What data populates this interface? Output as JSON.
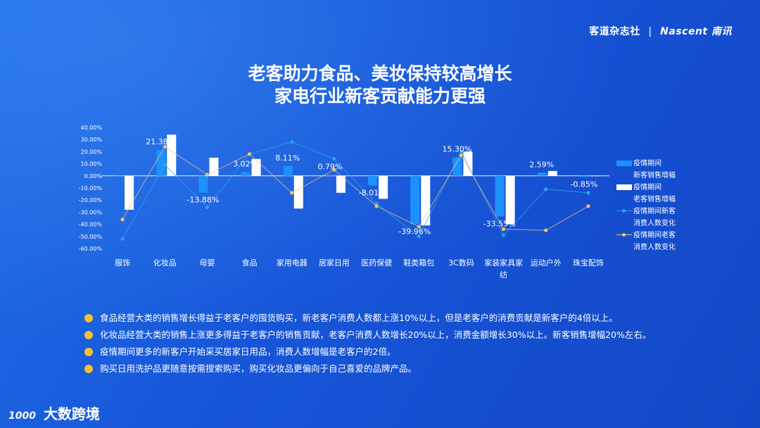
{
  "brand": {
    "left": "客道杂志社",
    "separator": "|",
    "right": "Nascent 南讯"
  },
  "title": {
    "line1": "老客助力食品、美妆保持较高增长",
    "line2": "家电行业新客贡献能力更强"
  },
  "legend": [
    {
      "lines": [
        "疫情期间",
        "新客销售增幅"
      ],
      "color": "#1e90ff",
      "kind": "bar"
    },
    {
      "lines": [
        "疫情期间",
        "老客销售增幅"
      ],
      "color": "#ffffff",
      "kind": "bar"
    },
    {
      "lines": [
        "疫情期间新客",
        "消费人数变化"
      ],
      "color": "#2aa4f4",
      "kind": "line"
    },
    {
      "lines": [
        "疫情期间老客",
        "消费人数变化"
      ],
      "color": "#f5c26b",
      "kind": "line"
    }
  ],
  "chart_data": {
    "type": "bar",
    "categories": [
      "服饰",
      "化妆品",
      "母婴",
      "食品",
      "家用电器",
      "居家日用",
      "医药保健",
      "鞋类箱包",
      "3C数码",
      "家装家具家纺",
      "运动户外",
      "珠宝配饰"
    ],
    "category_label_lines": [
      [
        "服饰"
      ],
      [
        "化妆品"
      ],
      [
        "母婴"
      ],
      [
        "食品"
      ],
      [
        "家用电器"
      ],
      [
        "居家日用"
      ],
      [
        "医药保健"
      ],
      [
        "鞋类箱包"
      ],
      [
        "3C数码"
      ],
      [
        "家装家具家",
        "纺"
      ],
      [
        "运动户外"
      ],
      [
        "珠宝配饰"
      ]
    ],
    "yticks": [
      "40.00%",
      "30.00%",
      "20.00%",
      "10.00%",
      "0.00%",
      "-10.00%",
      "-20.00%",
      "-30.00%",
      "-40.00%",
      "-50.00%",
      "-60.00%"
    ],
    "ylim": [
      -60,
      40
    ],
    "series": [
      {
        "name": "疫情期间新客销售增幅",
        "type": "bar",
        "color": "#1e90ff",
        "values": [
          0,
          21.38,
          -13.88,
          3.02,
          8.11,
          0.79,
          -8.01,
          -39.96,
          15.3,
          -33.55,
          2.59,
          -0.85
        ]
      },
      {
        "name": "疫情期间老客销售增幅",
        "type": "bar",
        "color": "#ffffff",
        "values": [
          -28,
          34,
          15,
          14,
          -27,
          -14,
          -19,
          -41,
          20,
          -40,
          4,
          0
        ]
      },
      {
        "name": "疫情期间新客消费人数变化",
        "type": "line",
        "color": "#2aa4f4",
        "values": [
          -52,
          9,
          -26,
          18,
          28,
          14,
          -23,
          -50,
          20,
          -49,
          -11,
          -14
        ]
      },
      {
        "name": "疫情期间老客消费人数变化",
        "type": "line",
        "color": "#f5c26b",
        "values": [
          -36,
          24,
          1,
          18,
          -14,
          5,
          -25,
          -42,
          17,
          -44,
          -45,
          -25
        ]
      }
    ],
    "data_labels": [
      "",
      "21.38%",
      "-13.88%",
      "3.02%",
      "8.11%",
      "0.79%",
      "-8.01%",
      "-39.96%",
      "15.30%",
      "-33.55%",
      "2.59%",
      "-0.85%"
    ],
    "title": "",
    "xlabel": "",
    "ylabel": ""
  },
  "bullets": [
    "食品经营大类的销售增长得益于老客户的囤货购买，新老客户消费人数都上涨10%以上，但是老客户的消费贡献是新客户的4倍以上。",
    "化妆品经营大类的销售上涨更多得益于老客户的销售贡献，老客户消费人数增长20%以上，消费金额增长30%以上。新客销售增幅20%左右。",
    "疫情期间更多的新客户开始采买居家日用品，消费人数增幅是老客户的2倍。",
    "购买日用洗护品更随意按需搜索购买，购买化妆品更偏向于自己喜爱的品牌产品。"
  ],
  "footer": {
    "logo": "大数跨境",
    "mark": "1000"
  },
  "colors": {
    "background": "#1755d8",
    "bullet_dot": "#f3c230"
  }
}
